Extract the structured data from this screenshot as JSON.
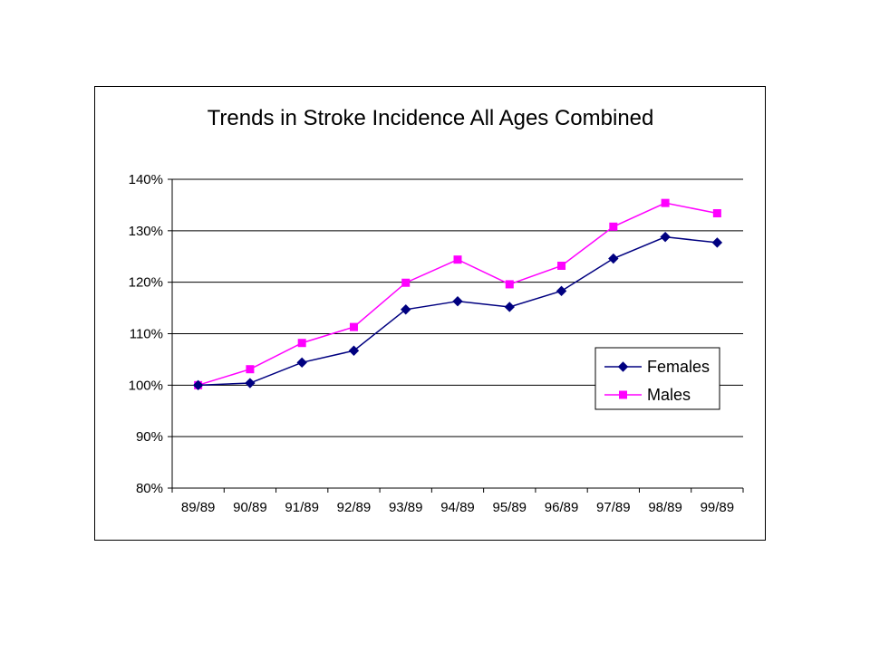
{
  "chart_data": {
    "type": "line",
    "title": "Trends in Stroke Incidence All Ages Combined",
    "xlabel": "",
    "ylabel": "",
    "categories": [
      "89/89",
      "90/89",
      "91/89",
      "92/89",
      "93/89",
      "94/89",
      "95/89",
      "96/89",
      "97/89",
      "98/89",
      "99/89"
    ],
    "ylim": [
      0.8,
      1.4
    ],
    "yticks": [
      {
        "value": 1.4,
        "label": "140%"
      },
      {
        "value": 1.3,
        "label": "130%"
      },
      {
        "value": 1.2,
        "label": "120%"
      },
      {
        "value": 1.1,
        "label": "110%"
      },
      {
        "value": 1.0,
        "label": "100%"
      },
      {
        "value": 0.9,
        "label": "90%"
      },
      {
        "value": 0.8,
        "label": "80%"
      }
    ],
    "grid": "horizontal",
    "legend_position": "right",
    "series": [
      {
        "name": "Females",
        "color": "#000080",
        "marker": "diamond",
        "values": [
          1.0,
          1.004,
          1.044,
          1.067,
          1.147,
          1.163,
          1.152,
          1.183,
          1.246,
          1.288,
          1.277
        ]
      },
      {
        "name": "Males",
        "color": "#ff00ff",
        "marker": "square",
        "values": [
          1.0,
          1.031,
          1.082,
          1.113,
          1.199,
          1.244,
          1.196,
          1.232,
          1.308,
          1.354,
          1.334
        ]
      }
    ]
  }
}
